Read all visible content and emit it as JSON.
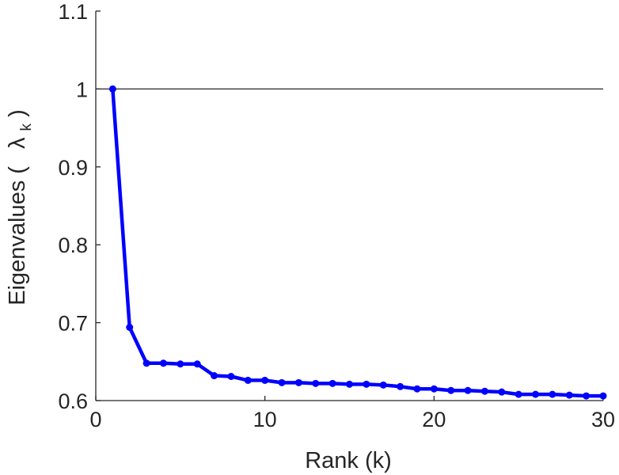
{
  "chart_data": {
    "type": "line",
    "title": "",
    "xlabel": "Rank (k)",
    "ylabel": {
      "prefix": "Eigenvalues (",
      "symbol": "λ",
      "subscript": "k",
      "suffix": ")"
    },
    "xlim": [
      0,
      30
    ],
    "ylim": [
      0.6,
      1.1
    ],
    "x_ticks": [
      0,
      10,
      20,
      30
    ],
    "y_ticks": [
      0.6,
      0.7,
      0.8,
      0.9,
      1,
      1.1
    ],
    "x_tick_labels": [
      "0",
      "10",
      "20",
      "30"
    ],
    "y_tick_labels": [
      "0.6",
      "0.7",
      "0.8",
      "0.9",
      "1",
      "1.1"
    ],
    "reference_line": {
      "y": 1
    },
    "grid": false,
    "box": "open top and right",
    "series": [
      {
        "color": "#0000ff",
        "marker": "dot",
        "x": [
          1,
          2,
          3,
          4,
          5,
          6,
          7,
          8,
          9,
          10,
          11,
          12,
          13,
          14,
          15,
          16,
          17,
          18,
          19,
          20,
          21,
          22,
          23,
          24,
          25,
          26,
          27,
          28,
          29,
          30
        ],
        "values": [
          1.0,
          0.694,
          0.648,
          0.648,
          0.647,
          0.647,
          0.632,
          0.631,
          0.626,
          0.626,
          0.623,
          0.623,
          0.622,
          0.622,
          0.621,
          0.621,
          0.62,
          0.618,
          0.615,
          0.615,
          0.613,
          0.613,
          0.612,
          0.611,
          0.608,
          0.608,
          0.608,
          0.607,
          0.606,
          0.606
        ]
      }
    ]
  }
}
